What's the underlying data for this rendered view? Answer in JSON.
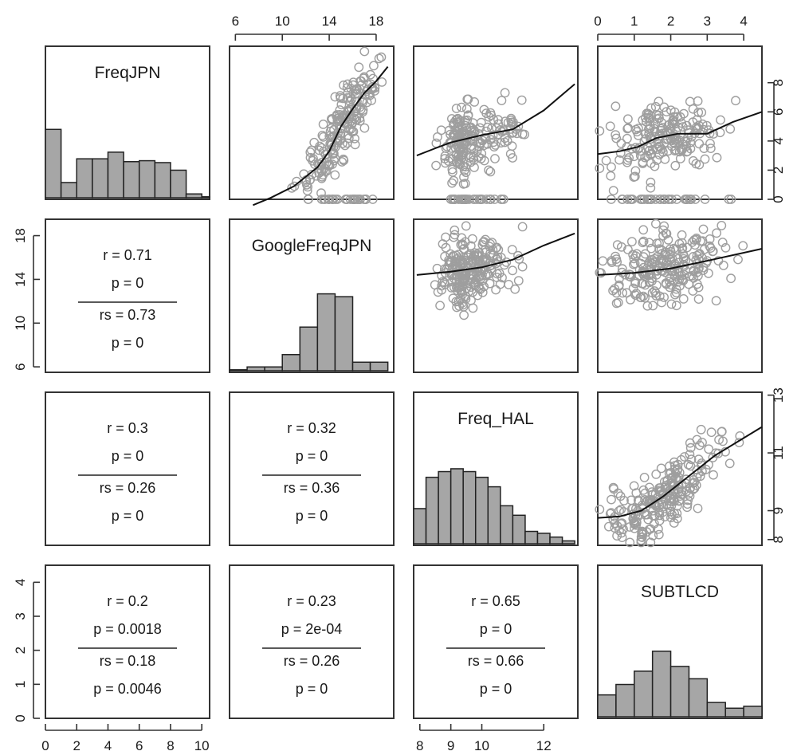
{
  "chart_data": {
    "type": "scatter-matrix",
    "variables": [
      "FreqJPN",
      "GoogleFreqJPN",
      "Freq_HAL",
      "SUBTLCD"
    ],
    "axes": {
      "FreqJPN": {
        "range": [
          0,
          10.5
        ],
        "ticks": [
          0,
          2,
          4,
          6,
          8,
          10
        ]
      },
      "GoogleFreqJPN": {
        "range": [
          5.5,
          19.5
        ],
        "ticks": [
          6,
          10,
          14,
          18
        ]
      },
      "Freq_HAL": {
        "range": [
          7.8,
          13.1
        ],
        "ticks": [
          8,
          9,
          10,
          12
        ]
      },
      "SUBTLCD": {
        "range": [
          0,
          4.5
        ],
        "ticks": [
          0,
          1,
          2,
          3,
          4
        ]
      },
      "FreqJPN_right": {
        "ticks": [
          0,
          2,
          4,
          6,
          8
        ]
      },
      "Freq_HAL_right": {
        "ticks": [
          8,
          9,
          11,
          13
        ]
      }
    },
    "correlations": [
      {
        "row": "GoogleFreqJPN",
        "col": "FreqJPN",
        "lines": [
          "r = 0.71",
          "p = 0",
          "rs = 0.73",
          "p = 0"
        ]
      },
      {
        "row": "Freq_HAL",
        "col": "FreqJPN",
        "lines": [
          "r = 0.3",
          "p = 0",
          "rs = 0.26",
          "p = 0"
        ]
      },
      {
        "row": "Freq_HAL",
        "col": "GoogleFreqJPN",
        "lines": [
          "r = 0.32",
          "p = 0",
          "rs = 0.36",
          "p = 0"
        ]
      },
      {
        "row": "SUBTLCD",
        "col": "FreqJPN",
        "lines": [
          "r = 0.2",
          "p = 0.0018",
          "rs = 0.18",
          "p = 0.0046"
        ]
      },
      {
        "row": "SUBTLCD",
        "col": "GoogleFreqJPN",
        "lines": [
          "r = 0.23",
          "p = 2e-04",
          "rs = 0.26",
          "p = 0"
        ]
      },
      {
        "row": "SUBTLCD",
        "col": "Freq_HAL",
        "lines": [
          "r = 0.65",
          "p = 0",
          "rs = 0.66",
          "p = 0"
        ]
      }
    ],
    "histograms": {
      "FreqJPN": {
        "bins": [
          0,
          1,
          2,
          3,
          4,
          5,
          6,
          7,
          8,
          9,
          10,
          11
        ],
        "density": [
          0.72,
          0.16,
          0.41,
          0.41,
          0.48,
          0.38,
          0.39,
          0.37,
          0.29,
          0.04,
          0.01
        ]
      },
      "GoogleFreqJPN": {
        "bins": [
          5.5,
          7,
          8.5,
          10,
          11.5,
          13,
          14.5,
          16,
          17.5,
          19
        ],
        "density": [
          0.01,
          0.04,
          0.04,
          0.17,
          0.46,
          0.81,
          0.78,
          0.09,
          0.09
        ]
      },
      "Freq_HAL": {
        "bins": [
          7.8,
          8.2,
          8.6,
          9.0,
          9.4,
          9.8,
          10.2,
          10.6,
          11.0,
          11.4,
          11.8,
          12.2,
          12.6,
          13.0
        ],
        "density": [
          0.37,
          0.7,
          0.76,
          0.79,
          0.76,
          0.7,
          0.6,
          0.4,
          0.3,
          0.13,
          0.11,
          0.07,
          0.03
        ]
      },
      "SUBTLCD": {
        "bins": [
          0,
          0.5,
          1,
          1.5,
          2,
          2.5,
          3,
          3.5,
          4,
          4.5
        ],
        "density": [
          0.23,
          0.34,
          0.48,
          0.69,
          0.53,
          0.4,
          0.15,
          0.09,
          0.11
        ]
      }
    },
    "smooth_lines": [
      {
        "x": "GoogleFreqJPN",
        "y": "FreqJPN",
        "points": [
          [
            7.5,
            -0.4
          ],
          [
            9,
            0.1
          ],
          [
            11,
            0.9
          ],
          [
            13,
            2.2
          ],
          [
            14,
            3.3
          ],
          [
            15,
            5
          ],
          [
            16,
            6.2
          ],
          [
            17,
            7.3
          ],
          [
            18,
            8.1
          ],
          [
            19,
            9.1
          ]
        ]
      },
      {
        "x": "Freq_HAL",
        "y": "FreqJPN",
        "points": [
          [
            7.9,
            3.0
          ],
          [
            8.5,
            3.5
          ],
          [
            9,
            3.9
          ],
          [
            10,
            4.4
          ],
          [
            11,
            4.8
          ],
          [
            12,
            6.1
          ],
          [
            13,
            7.9
          ]
        ]
      },
      {
        "x": "SUBTLCD",
        "y": "FreqJPN",
        "points": [
          [
            0,
            3.1
          ],
          [
            0.6,
            3.3
          ],
          [
            1.1,
            3.6
          ],
          [
            1.6,
            4.2
          ],
          [
            2.2,
            4.5
          ],
          [
            3,
            4.5
          ],
          [
            3.7,
            5.3
          ],
          [
            4.5,
            6.0
          ]
        ]
      },
      {
        "x": "Freq_HAL",
        "y": "GoogleFreqJPN",
        "points": [
          [
            7.9,
            14.4
          ],
          [
            9,
            14.7
          ],
          [
            10,
            15.1
          ],
          [
            11,
            15.8
          ],
          [
            12,
            17.1
          ],
          [
            13,
            18.2
          ]
        ]
      },
      {
        "x": "SUBTLCD",
        "y": "GoogleFreqJPN",
        "points": [
          [
            0,
            14.4
          ],
          [
            1,
            14.6
          ],
          [
            2,
            15.0
          ],
          [
            3,
            15.7
          ],
          [
            4.5,
            16.8
          ]
        ]
      },
      {
        "x": "SUBTLCD",
        "y": "Freq_HAL",
        "points": [
          [
            0,
            8.75
          ],
          [
            0.6,
            8.8
          ],
          [
            1.2,
            9.0
          ],
          [
            1.8,
            9.5
          ],
          [
            2.5,
            10.2
          ],
          [
            3.2,
            10.9
          ],
          [
            4.5,
            11.9
          ]
        ]
      }
    ],
    "grid": false,
    "legend": "none"
  },
  "colors": {
    "bar": "#a6a6a6",
    "points": "#9e9e9e",
    "line": "#111111",
    "frame": "#333333"
  }
}
